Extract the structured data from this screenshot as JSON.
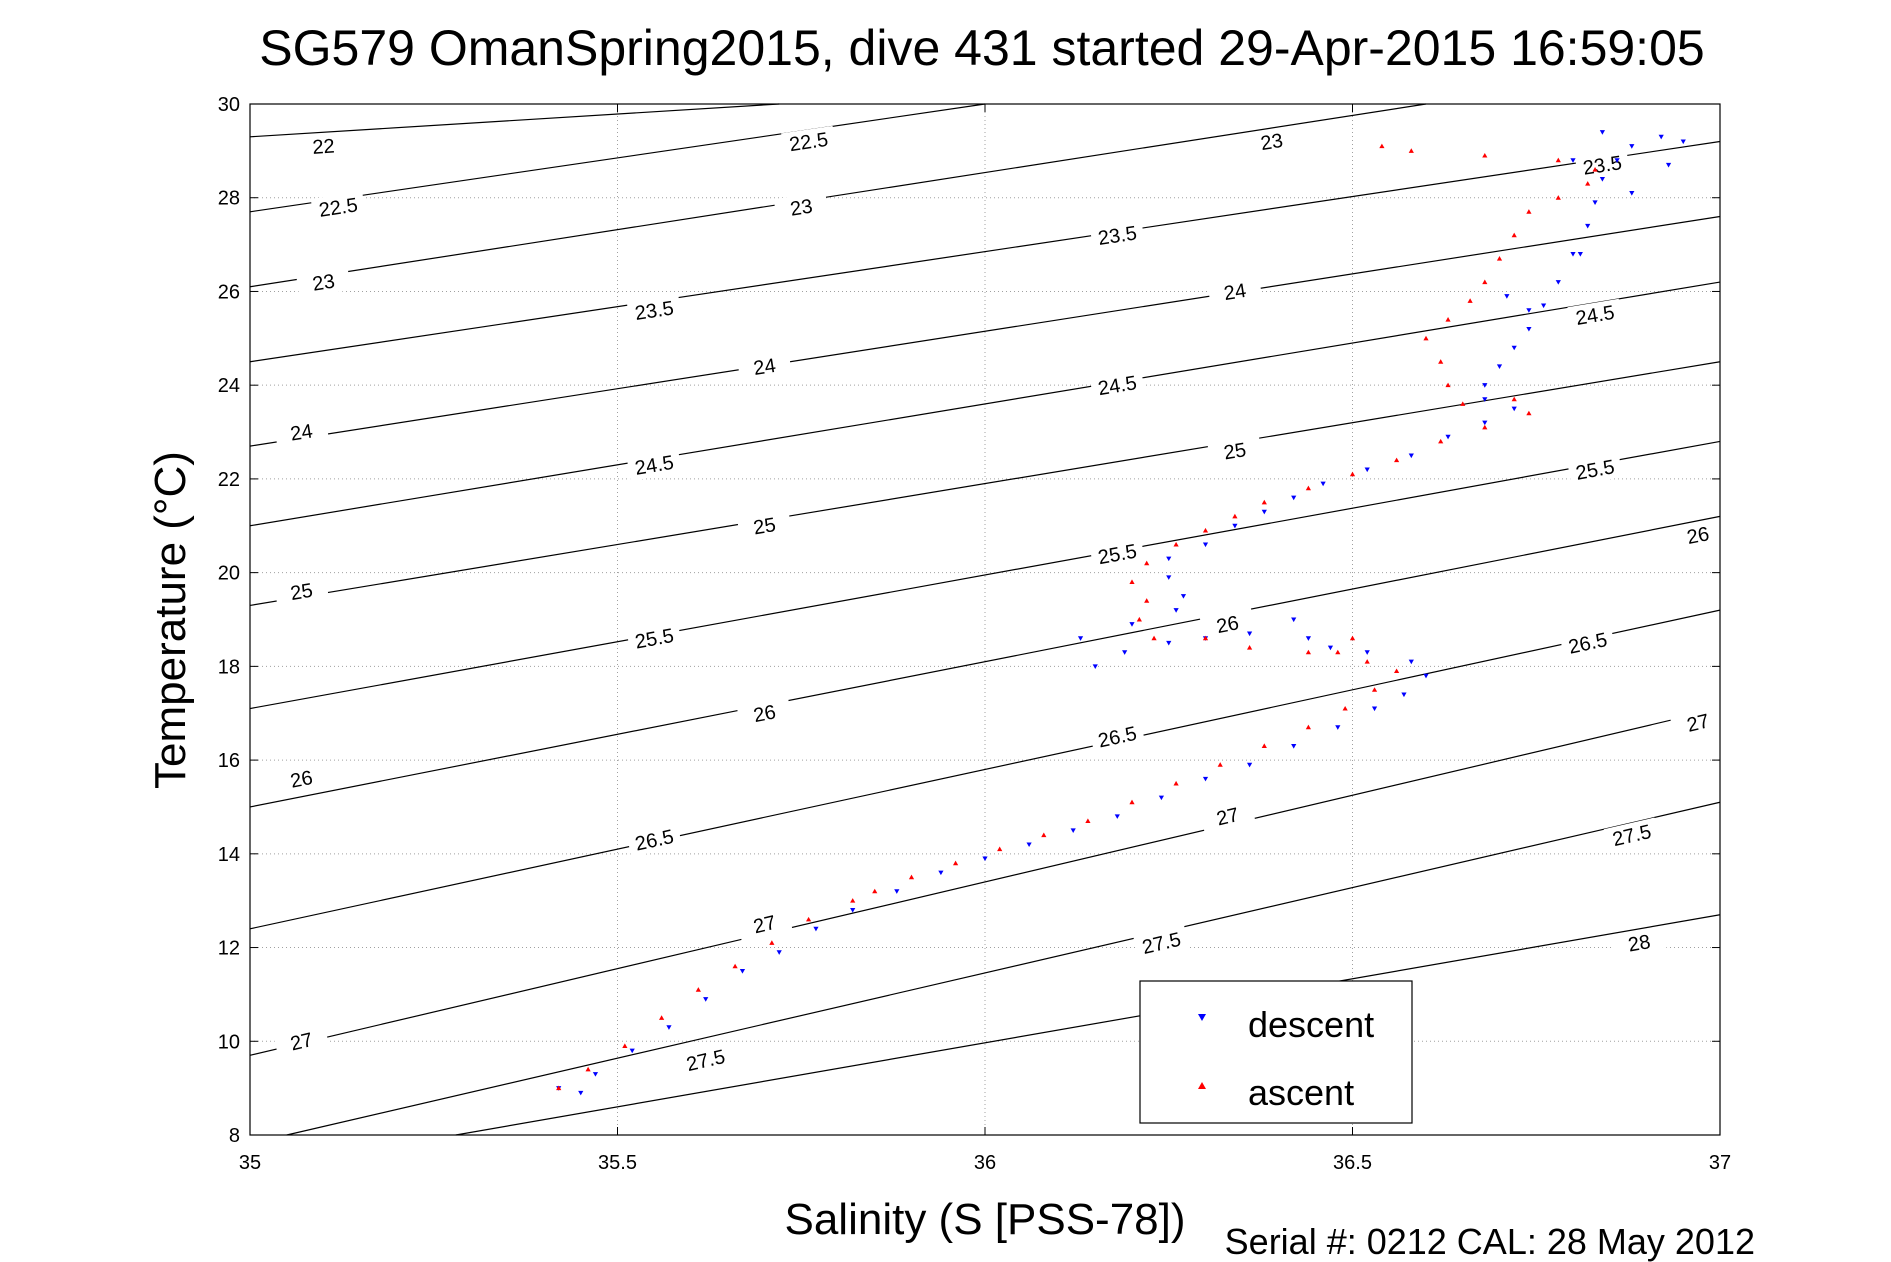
{
  "chart_data": {
    "type": "scatter",
    "title": "SG579 OmanSpring2015, dive 431 started 29-Apr-2015 16:59:05",
    "xlabel": "Salinity (S [PSS-78])",
    "ylabel": "Temperature (°C)",
    "footer": "Serial #: 0212  CAL: 28 May 2012",
    "xlim": [
      35,
      37
    ],
    "ylim": [
      8,
      30
    ],
    "xticks": [
      35,
      35.5,
      36,
      36.5,
      37
    ],
    "xtick_labels": [
      "35",
      "35.5",
      "36",
      "36.5",
      "37"
    ],
    "yticks": [
      8,
      10,
      12,
      14,
      16,
      18,
      20,
      22,
      24,
      26,
      28,
      30
    ],
    "ytick_labels": [
      "8",
      "10",
      "12",
      "14",
      "16",
      "18",
      "20",
      "22",
      "24",
      "26",
      "28",
      "30"
    ],
    "grid": true,
    "legend_position": "bottom-right",
    "contours": [
      {
        "value": 22,
        "label": "22",
        "p1": [
          35,
          29.3
        ],
        "p2": [
          35.72,
          30
        ],
        "label_pos": [
          35.1,
          29.1
        ]
      },
      {
        "value": 22.5,
        "label": "22.5",
        "p1": [
          35,
          27.7
        ],
        "p2": [
          36,
          30
        ],
        "label_pos": [
          35.12,
          27.8
        ],
        "label2_pos": [
          35.76,
          29.2
        ]
      },
      {
        "value": 23,
        "label": "23",
        "p1": [
          35,
          26.1
        ],
        "p2": [
          36.6,
          30
        ],
        "label_pos": [
          35.1,
          26.2
        ],
        "label2_pos": [
          35.75,
          27.8
        ],
        "label3_pos": [
          36.39,
          29.2
        ]
      },
      {
        "value": 23.5,
        "label": "23.5",
        "p1": [
          35,
          24.5
        ],
        "p2": [
          37,
          29.2
        ],
        "label_pos": [
          35.55,
          25.6
        ],
        "label2_pos": [
          36.18,
          27.2
        ],
        "label3_pos": [
          36.84,
          28.7
        ]
      },
      {
        "value": 24,
        "label": "24",
        "p1": [
          35,
          22.7
        ],
        "p2": [
          37,
          27.6
        ],
        "label_pos": [
          35.07,
          23.0
        ],
        "label2_pos": [
          35.7,
          24.4
        ],
        "label3_pos": [
          36.34,
          26.0
        ]
      },
      {
        "value": 24.5,
        "label": "24.5",
        "p1": [
          35,
          21.0
        ],
        "p2": [
          37,
          26.2
        ],
        "label_pos": [
          35.55,
          22.3
        ],
        "label2_pos": [
          36.18,
          24.0
        ],
        "label3_pos": [
          36.83,
          25.5
        ]
      },
      {
        "value": 25,
        "label": "25",
        "p1": [
          35,
          19.3
        ],
        "p2": [
          37,
          24.5
        ],
        "label_pos": [
          35.07,
          19.6
        ],
        "label2_pos": [
          35.7,
          21.0
        ],
        "label3_pos": [
          36.34,
          22.6
        ]
      },
      {
        "value": 25.5,
        "label": "25.5",
        "p1": [
          35,
          17.1
        ],
        "p2": [
          37,
          22.8
        ],
        "label_pos": [
          35.55,
          18.6
        ],
        "label2_pos": [
          36.18,
          20.4
        ],
        "label3_pos": [
          36.83,
          22.2
        ]
      },
      {
        "value": 26,
        "label": "26",
        "p1": [
          35,
          15.0
        ],
        "p2": [
          37,
          21.2
        ],
        "label_pos": [
          35.07,
          15.6
        ],
        "label2_pos": [
          35.7,
          17.0
        ],
        "label3_pos": [
          36.33,
          18.9
        ],
        "label4_pos": [
          36.97,
          20.8
        ]
      },
      {
        "value": 26.5,
        "label": "26.5",
        "p1": [
          35,
          12.4
        ],
        "p2": [
          37,
          19.2
        ],
        "label_pos": [
          35.55,
          14.3
        ],
        "label2_pos": [
          36.18,
          16.5
        ],
        "label3_pos": [
          36.82,
          18.5
        ]
      },
      {
        "value": 27,
        "label": "27",
        "p1": [
          35,
          9.7
        ],
        "p2": [
          37,
          17.1
        ],
        "label_pos": [
          35.07,
          10.0
        ],
        "label2_pos": [
          35.7,
          12.5
        ],
        "label3_pos": [
          36.33,
          14.8
        ],
        "label4_pos": [
          36.97,
          16.8
        ]
      },
      {
        "value": 27.5,
        "label": "27.5",
        "p1": [
          35.05,
          8.0
        ],
        "p2": [
          37,
          15.1
        ],
        "label_pos": [
          35.62,
          9.6
        ],
        "label2_pos": [
          36.24,
          12.1
        ],
        "label3_pos": [
          36.88,
          14.4
        ]
      },
      {
        "value": 28,
        "label": "28",
        "p1": [
          35.28,
          8.0
        ],
        "p2": [
          37,
          12.7
        ],
        "label_pos": [
          36.89,
          12.1
        ]
      }
    ],
    "series": [
      {
        "name": "descent",
        "color": "#0000ff",
        "marker": "triangle-down",
        "points": [
          [
            35.42,
            9.0
          ],
          [
            35.45,
            8.9
          ],
          [
            35.47,
            9.3
          ],
          [
            35.52,
            9.8
          ],
          [
            35.57,
            10.3
          ],
          [
            35.62,
            10.9
          ],
          [
            35.67,
            11.5
          ],
          [
            35.72,
            11.9
          ],
          [
            35.77,
            12.4
          ],
          [
            35.82,
            12.8
          ],
          [
            35.88,
            13.2
          ],
          [
            35.94,
            13.6
          ],
          [
            36.0,
            13.9
          ],
          [
            36.06,
            14.2
          ],
          [
            36.12,
            14.5
          ],
          [
            36.18,
            14.8
          ],
          [
            36.24,
            15.2
          ],
          [
            36.3,
            15.6
          ],
          [
            36.36,
            15.9
          ],
          [
            36.42,
            16.3
          ],
          [
            36.48,
            16.7
          ],
          [
            36.53,
            17.1
          ],
          [
            36.57,
            17.4
          ],
          [
            36.6,
            17.8
          ],
          [
            36.58,
            18.1
          ],
          [
            36.52,
            18.3
          ],
          [
            36.47,
            18.4
          ],
          [
            36.44,
            18.6
          ],
          [
            36.42,
            19.0
          ],
          [
            36.36,
            18.7
          ],
          [
            36.3,
            18.6
          ],
          [
            36.25,
            18.5
          ],
          [
            36.19,
            18.3
          ],
          [
            36.15,
            18.0
          ],
          [
            36.13,
            18.6
          ],
          [
            36.2,
            18.9
          ],
          [
            36.26,
            19.2
          ],
          [
            36.27,
            19.5
          ],
          [
            36.25,
            19.9
          ],
          [
            36.25,
            20.3
          ],
          [
            36.3,
            20.6
          ],
          [
            36.34,
            21.0
          ],
          [
            36.38,
            21.3
          ],
          [
            36.42,
            21.6
          ],
          [
            36.46,
            21.9
          ],
          [
            36.52,
            22.2
          ],
          [
            36.58,
            22.5
          ],
          [
            36.63,
            22.9
          ],
          [
            36.68,
            23.2
          ],
          [
            36.72,
            23.5
          ],
          [
            36.68,
            23.7
          ],
          [
            36.68,
            24.0
          ],
          [
            36.7,
            24.4
          ],
          [
            36.72,
            24.8
          ],
          [
            36.74,
            25.2
          ],
          [
            36.76,
            25.7
          ],
          [
            36.78,
            26.2
          ],
          [
            36.8,
            26.8
          ],
          [
            36.82,
            27.4
          ],
          [
            36.83,
            27.9
          ],
          [
            36.84,
            28.4
          ],
          [
            36.86,
            28.8
          ],
          [
            36.88,
            29.1
          ],
          [
            36.92,
            29.3
          ],
          [
            36.95,
            29.2
          ],
          [
            36.93,
            28.7
          ],
          [
            36.8,
            28.8
          ],
          [
            36.81,
            26.8
          ],
          [
            36.74,
            25.6
          ],
          [
            36.71,
            25.9
          ],
          [
            36.84,
            29.4
          ],
          [
            36.88,
            28.1
          ]
        ]
      },
      {
        "name": "ascent",
        "color": "#ff0000",
        "marker": "triangle-up",
        "points": [
          [
            35.42,
            9.0
          ],
          [
            35.46,
            9.4
          ],
          [
            35.51,
            9.9
          ],
          [
            35.56,
            10.5
          ],
          [
            35.61,
            11.1
          ],
          [
            35.66,
            11.6
          ],
          [
            35.71,
            12.1
          ],
          [
            35.76,
            12.6
          ],
          [
            35.82,
            13.0
          ],
          [
            35.85,
            13.2
          ],
          [
            35.9,
            13.5
          ],
          [
            35.96,
            13.8
          ],
          [
            36.02,
            14.1
          ],
          [
            36.08,
            14.4
          ],
          [
            36.14,
            14.7
          ],
          [
            36.2,
            15.1
          ],
          [
            36.26,
            15.5
          ],
          [
            36.32,
            15.9
          ],
          [
            36.38,
            16.3
          ],
          [
            36.44,
            16.7
          ],
          [
            36.49,
            17.1
          ],
          [
            36.53,
            17.5
          ],
          [
            36.56,
            17.9
          ],
          [
            36.52,
            18.1
          ],
          [
            36.48,
            18.3
          ],
          [
            36.5,
            18.6
          ],
          [
            36.44,
            18.3
          ],
          [
            36.36,
            18.4
          ],
          [
            36.3,
            18.6
          ],
          [
            36.23,
            18.6
          ],
          [
            36.21,
            19.0
          ],
          [
            36.22,
            19.4
          ],
          [
            36.2,
            19.8
          ],
          [
            36.22,
            20.2
          ],
          [
            36.26,
            20.6
          ],
          [
            36.3,
            20.9
          ],
          [
            36.34,
            21.2
          ],
          [
            36.38,
            21.5
          ],
          [
            36.44,
            21.8
          ],
          [
            36.5,
            22.1
          ],
          [
            36.56,
            22.4
          ],
          [
            36.62,
            22.8
          ],
          [
            36.68,
            23.1
          ],
          [
            36.74,
            23.4
          ],
          [
            36.72,
            23.7
          ],
          [
            36.65,
            23.6
          ],
          [
            36.63,
            24.0
          ],
          [
            36.62,
            24.5
          ],
          [
            36.6,
            25.0
          ],
          [
            36.63,
            25.4
          ],
          [
            36.66,
            25.8
          ],
          [
            36.68,
            26.2
          ],
          [
            36.7,
            26.7
          ],
          [
            36.72,
            27.2
          ],
          [
            36.74,
            27.7
          ],
          [
            36.78,
            28.0
          ],
          [
            36.82,
            28.3
          ],
          [
            36.83,
            28.6
          ],
          [
            36.54,
            29.1
          ],
          [
            36.58,
            29.0
          ],
          [
            36.68,
            28.9
          ],
          [
            36.78,
            28.8
          ]
        ]
      }
    ]
  },
  "legend": {
    "descent_label": "descent",
    "ascent_label": "ascent"
  }
}
